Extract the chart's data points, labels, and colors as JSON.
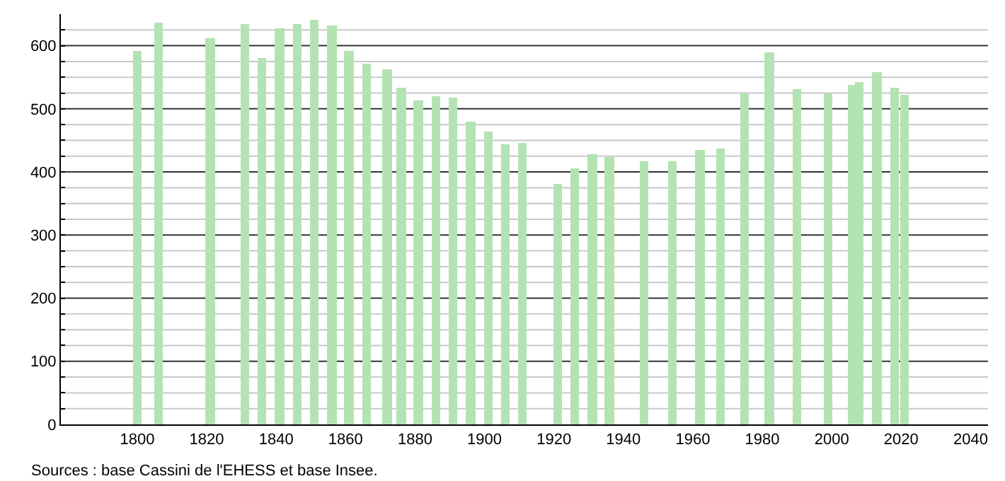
{
  "chart_data": {
    "type": "bar",
    "x": [
      1800,
      1806,
      1821,
      1831,
      1836,
      1841,
      1846,
      1851,
      1856,
      1861,
      1866,
      1872,
      1876,
      1881,
      1886,
      1891,
      1896,
      1901,
      1906,
      1911,
      1921,
      1926,
      1931,
      1936,
      1946,
      1954,
      1962,
      1968,
      1975,
      1982,
      1990,
      1999,
      2006,
      2008,
      2013,
      2018,
      2021
    ],
    "values": [
      591,
      636,
      612,
      634,
      580,
      627,
      634,
      641,
      632,
      592,
      572,
      562,
      533,
      513,
      519,
      517,
      479,
      465,
      443,
      445,
      380,
      405,
      427,
      423,
      418,
      418,
      434,
      438,
      525,
      589,
      531,
      525,
      539,
      542,
      557,
      533,
      522
    ],
    "color": "#b3e3b3",
    "xlim": [
      1778,
      2045
    ],
    "xticks": [
      1800,
      1820,
      1840,
      1860,
      1880,
      1900,
      1920,
      1940,
      1960,
      1980,
      2000,
      2020,
      2040
    ],
    "ylim": [
      0,
      650
    ],
    "yticks": [
      0,
      {
        "value": 25,
        "label": null
      },
      {
        "value": 50,
        "label": null
      },
      {
        "value": 75,
        "label": null
      },
      100,
      {
        "value": 125,
        "label": null
      },
      {
        "value": 150,
        "label": null
      },
      {
        "value": 175,
        "label": null
      },
      200,
      {
        "value": 225,
        "label": null
      },
      {
        "value": 250,
        "label": null
      },
      {
        "value": 275,
        "label": null
      },
      300,
      {
        "value": 325,
        "label": null
      },
      {
        "value": 350,
        "label": null
      },
      {
        "value": 375,
        "label": null
      },
      400,
      {
        "value": 425,
        "label": null
      },
      {
        "value": 450,
        "label": null
      },
      {
        "value": 475,
        "label": null
      },
      500,
      {
        "value": 525,
        "label": null
      },
      {
        "value": 550,
        "label": null
      },
      {
        "value": 575,
        "label": null
      },
      600,
      {
        "value": 625,
        "label": null
      }
    ],
    "grid": "y",
    "legend": false,
    "annotations": [
      "Sources : base Cassini de l'EHESS et base Insee."
    ]
  }
}
